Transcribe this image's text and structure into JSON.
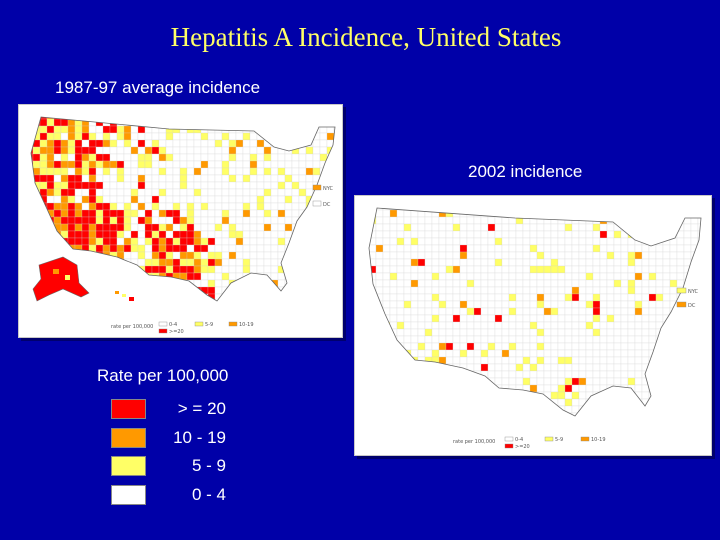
{
  "slide": {
    "title": "Hepatitis A Incidence, United States",
    "background_color": "#0000a8",
    "title_color": "#ffff66"
  },
  "maps": [
    {
      "caption": "1987-97 average incidence",
      "inset_labels": {
        "nyc": "NYC",
        "dc": "DC"
      },
      "legend_text": {
        "header": "rate per 100,000",
        "c0": "0-4",
        "c1": "5-9",
        "c2": "10-19",
        "c3": ">=20"
      }
    },
    {
      "caption": "2002 incidence",
      "inset_labels": {
        "nyc": "NYC",
        "dc": "DC"
      },
      "legend_text": {
        "header": "rate per 100,000",
        "c0": "0-4",
        "c1": "5-9",
        "c2": "10-19",
        "c3": ">=20"
      }
    }
  ],
  "legend": {
    "title": "Rate per 100,000",
    "items": [
      {
        "label": "> = 20",
        "color": "#ff0000"
      },
      {
        "label": "10 - 19",
        "color": "#ff9900"
      },
      {
        "label": "5 - 9",
        "color": "#ffff66"
      },
      {
        "label": "0 - 4",
        "color": "#ffffff"
      }
    ]
  }
}
